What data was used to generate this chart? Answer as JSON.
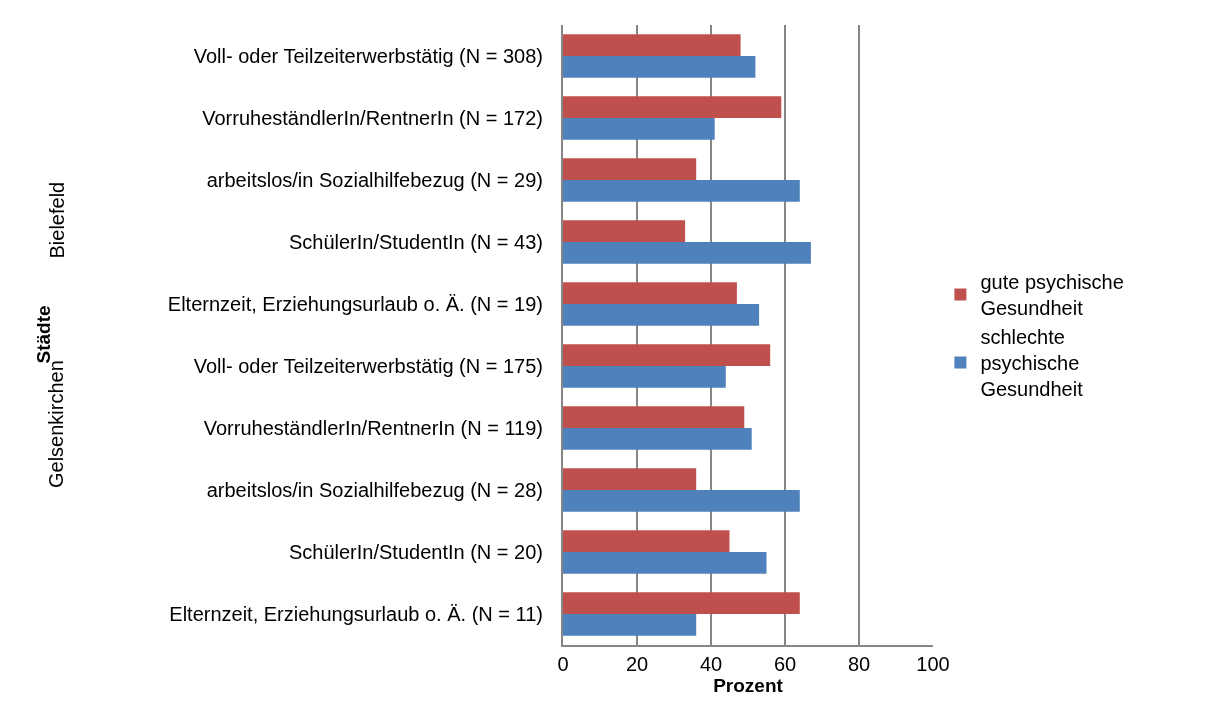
{
  "chart_data": {
    "type": "bar",
    "orientation": "horizontal",
    "xlabel": "Prozent",
    "categories": [
      "Voll- oder Teilzeiterwerbstätig (N = 308)",
      "VorruheständlerIn/RentnerIn (N = 172)",
      "arbeitslos/in Sozialhilfebezug (N = 29)",
      "SchülerIn/StudentIn (N = 43)",
      "Elternzeit, Erziehungsurlaub o. Ä. (N = 19)",
      "Voll- oder Teilzeiterwerbstätig (N = 175)",
      "VorruheständlerIn/RentnerIn (N = 119)",
      "arbeitslos/in Sozialhilfebezug (N = 28)",
      "SchülerIn/StudentIn (N = 20)",
      "Elternzeit, Erziehungsurlaub o. Ä. (N = 11)"
    ],
    "series": [
      {
        "name": "gute psychische Gesundheit",
        "color": "#c0504d",
        "values": [
          48,
          59,
          36,
          33,
          47,
          56,
          49,
          36,
          45,
          64
        ]
      },
      {
        "name": "schlechte psychische Gesundheit",
        "color": "#4f81bd",
        "values": [
          52,
          41,
          64,
          67,
          53,
          44,
          51,
          64,
          55,
          36
        ]
      }
    ],
    "annotations": [
      "Städte",
      "Bielefeld",
      "Gelsenkirchen"
    ],
    "xlim": [
      0,
      100
    ],
    "xticks": [
      0,
      20,
      40,
      60,
      80,
      100
    ],
    "grid": "x",
    "legend": "right"
  }
}
